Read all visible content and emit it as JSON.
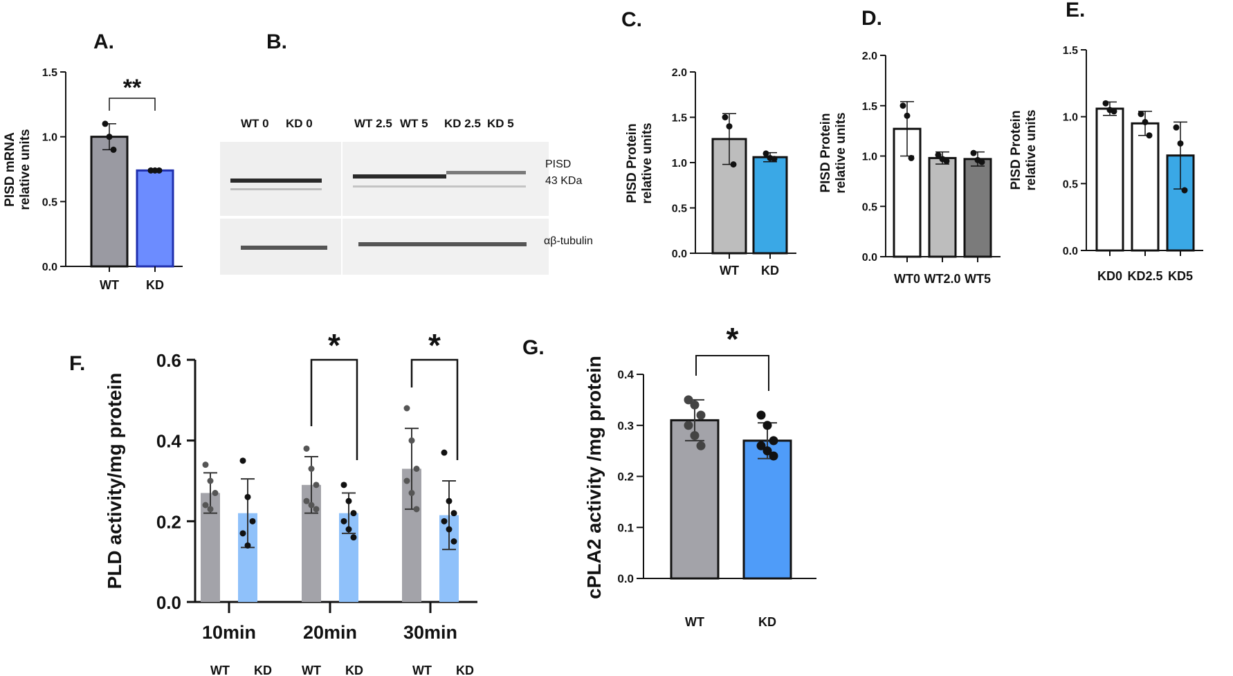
{
  "figure": {
    "panels": [
      {
        "letter": "A.",
        "type": "bar",
        "ylabel": [
          "PISD mRNA",
          "relative units"
        ],
        "yticks": [
          "1.5",
          "1.0",
          "0.5",
          "0.0"
        ],
        "ylim": [
          0,
          1.5
        ],
        "categories": [
          "WT",
          "KD"
        ],
        "values": [
          1.0,
          0.74
        ],
        "errors": [
          0.1,
          0.01
        ],
        "points": [
          [
            1.1,
            1.0,
            0.9
          ],
          [
            0.74,
            0.74,
            0.74
          ]
        ],
        "colors": [
          "#9a9aa2",
          "#6c8cff"
        ],
        "significance": "**"
      },
      {
        "letter": "C.",
        "type": "bar",
        "ylabel": [
          "PISD Protein",
          "relative units"
        ],
        "yticks": [
          "2.0",
          "1.5",
          "1.0",
          "0.5",
          "0.0"
        ],
        "ylim": [
          0,
          2
        ],
        "categories": [
          "WT",
          "KD"
        ],
        "values": [
          1.26,
          1.06
        ],
        "errors": [
          0.28,
          0.05
        ],
        "points": [
          [
            1.5,
            1.4,
            0.98
          ],
          [
            1.1,
            1.05,
            1.04
          ]
        ],
        "colors": [
          "#bdbdbd",
          "#3aa8e6"
        ]
      },
      {
        "letter": "D.",
        "type": "bar",
        "ylabel": [
          "PISD Protein",
          "relative units"
        ],
        "yticks": [
          "2.0",
          "1.5",
          "1.0",
          "0.5",
          "0.0"
        ],
        "ylim": [
          0,
          2
        ],
        "categories": [
          "WT0",
          "WT2.0",
          "WT5"
        ],
        "values": [
          1.27,
          0.98,
          0.97
        ],
        "errors": [
          0.27,
          0.06,
          0.07
        ],
        "points": [
          [
            1.5,
            1.4,
            0.98
          ],
          [
            1.01,
            0.97,
            0.95
          ],
          [
            1.03,
            0.96,
            0.94
          ]
        ],
        "colors": [
          "#ffffff",
          "#bdbdbd",
          "#7b7b7b"
        ]
      },
      {
        "letter": "E.",
        "type": "bar",
        "ylabel": [
          "PISD Protein",
          "relative units"
        ],
        "yticks": [
          "1.5",
          "1.0",
          "0.5",
          "0.0"
        ],
        "ylim": [
          0,
          1.5
        ],
        "categories": [
          "KD0",
          "KD2.5",
          "KD5"
        ],
        "values": [
          1.06,
          0.95,
          0.71
        ],
        "errors": [
          0.05,
          0.09,
          0.25
        ],
        "points": [
          [
            1.1,
            1.05,
            1.04
          ],
          [
            1.02,
            0.96,
            0.86
          ],
          [
            0.92,
            0.8,
            0.45
          ]
        ],
        "colors": [
          "#ffffff",
          "#ffffff",
          "#3aa8e6"
        ]
      }
    ],
    "blot": {
      "letter": "B.",
      "lanes_left": [
        "WT 0",
        "KD 0"
      ],
      "lanes_right": [
        "WT 2.5",
        "WT 5",
        "KD 2.5",
        "KD 5"
      ],
      "band1": [
        "PISD",
        "43 KDa"
      ],
      "band2": "αβ-tubulin"
    },
    "panel_f": {
      "letter": "F.",
      "type": "grouped-bar",
      "ylabel": "PLD activity/mg protein",
      "yticks": [
        "0.6",
        "0.4",
        "0.2",
        "0.0"
      ],
      "ylim": [
        0,
        0.6
      ],
      "groups": [
        "10min",
        "20min",
        "30min"
      ],
      "series": [
        {
          "name": "WT",
          "values": [
            0.27,
            0.29,
            0.33
          ],
          "errors": [
            0.05,
            0.07,
            0.1
          ],
          "color": "#a3a3a9",
          "points": [
            [
              0.34,
              0.3,
              0.27,
              0.24,
              0.23
            ],
            [
              0.38,
              0.33,
              0.29,
              0.25,
              0.24,
              0.23
            ],
            [
              0.48,
              0.4,
              0.33,
              0.3,
              0.27,
              0.23
            ]
          ]
        },
        {
          "name": "KD",
          "values": [
            0.22,
            0.22,
            0.215
          ],
          "errors": [
            0.085,
            0.05,
            0.085
          ],
          "color": "#8fc1fa",
          "points": [
            [
              0.35,
              0.26,
              0.2,
              0.17,
              0.14
            ],
            [
              0.29,
              0.25,
              0.22,
              0.2,
              0.18,
              0.16
            ],
            [
              0.37,
              0.25,
              0.22,
              0.2,
              0.18,
              0.15
            ]
          ]
        }
      ],
      "under_labels": [
        "WT",
        "KD",
        "WT",
        "KD",
        "WT",
        "KD"
      ],
      "significance": [
        "*",
        "*"
      ]
    },
    "panel_g": {
      "letter": "G.",
      "type": "bar",
      "ylabel": "cPLA2 activity /mg protein",
      "yticks": [
        "0.4",
        "0.3",
        "0.2",
        "0.1",
        "0.0"
      ],
      "ylim": [
        0,
        0.4
      ],
      "categories": [
        "WT",
        "KD"
      ],
      "values": [
        0.31,
        0.27
      ],
      "errors": [
        0.04,
        0.035
      ],
      "points": [
        [
          0.35,
          0.34,
          0.32,
          0.3,
          0.28,
          0.26
        ],
        [
          0.32,
          0.3,
          0.27,
          0.26,
          0.25,
          0.24
        ]
      ],
      "colors": [
        "#a3a3a9",
        "#4f9cf9"
      ],
      "significance": "*"
    }
  },
  "chart_data": [
    {
      "panel": "A",
      "type": "bar",
      "title": "",
      "xlabel": "",
      "ylabel": "PISD mRNA relative units",
      "categories": [
        "WT",
        "KD"
      ],
      "values": [
        1.0,
        0.74
      ],
      "ylim": [
        0,
        1.5
      ]
    },
    {
      "panel": "C",
      "type": "bar",
      "title": "",
      "xlabel": "",
      "ylabel": "PISD Protein relative units",
      "categories": [
        "WT",
        "KD"
      ],
      "values": [
        1.26,
        1.06
      ],
      "ylim": [
        0,
        2
      ]
    },
    {
      "panel": "D",
      "type": "bar",
      "title": "",
      "xlabel": "",
      "ylabel": "PISD Protein relative units",
      "categories": [
        "WT0",
        "WT2.0",
        "WT5"
      ],
      "values": [
        1.27,
        0.98,
        0.97
      ],
      "ylim": [
        0,
        2
      ]
    },
    {
      "panel": "E",
      "type": "bar",
      "title": "",
      "xlabel": "",
      "ylabel": "PISD Protein relative units",
      "categories": [
        "KD0",
        "KD2.5",
        "KD5"
      ],
      "values": [
        1.06,
        0.95,
        0.71
      ],
      "ylim": [
        0,
        1.5
      ]
    },
    {
      "panel": "F",
      "type": "bar",
      "title": "",
      "xlabel": "",
      "ylabel": "PLD activity/mg protein",
      "categories": [
        "10min",
        "20min",
        "30min"
      ],
      "series": [
        {
          "name": "WT",
          "values": [
            0.27,
            0.29,
            0.33
          ]
        },
        {
          "name": "KD",
          "values": [
            0.22,
            0.22,
            0.215
          ]
        }
      ],
      "ylim": [
        0,
        0.6
      ]
    },
    {
      "panel": "G",
      "type": "bar",
      "title": "",
      "xlabel": "",
      "ylabel": "cPLA2 activity /mg protein",
      "categories": [
        "WT",
        "KD"
      ],
      "values": [
        0.31,
        0.27
      ],
      "ylim": [
        0,
        0.4
      ]
    }
  ]
}
